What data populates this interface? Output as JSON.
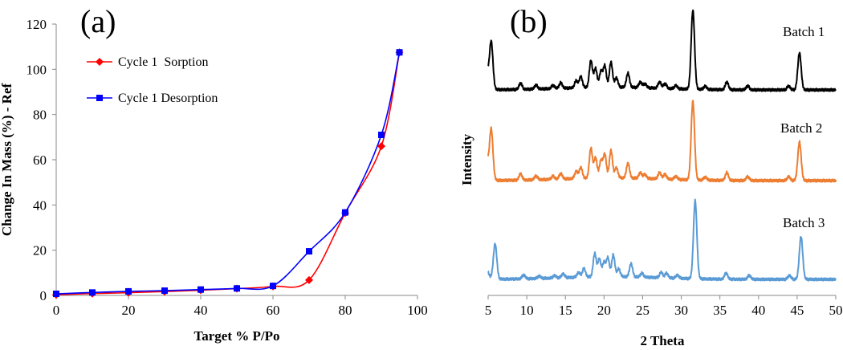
{
  "chart_data": [
    {
      "type": "line",
      "panel_label": "(a)",
      "xlabel": "Target % P/Po",
      "ylabel": "Change In Mass (%) - Ref",
      "xlim": [
        0,
        100
      ],
      "ylim": [
        0,
        120
      ],
      "xticks": [
        "0",
        "20",
        "40",
        "60",
        "80",
        "100"
      ],
      "yticks": [
        "0",
        "20",
        "40",
        "60",
        "80",
        "100",
        "120"
      ],
      "legend_position": "top-left",
      "series": [
        {
          "name": "Cycle 1  Sorption",
          "color": "#ff0000",
          "marker": "diamond",
          "x": [
            0,
            10,
            20,
            30,
            40,
            50,
            60,
            70,
            80,
            90,
            95
          ],
          "y": [
            0.3,
            0.8,
            1.2,
            1.7,
            2.3,
            3.0,
            4.0,
            6.8,
            36.5,
            66.0,
            107.5
          ]
        },
        {
          "name": "Cycle 1 Desorption",
          "color": "#0000ff",
          "marker": "square",
          "x": [
            0,
            10,
            20,
            30,
            40,
            50,
            60,
            70,
            80,
            90,
            95
          ],
          "y": [
            0.7,
            1.3,
            1.8,
            2.1,
            2.6,
            3.1,
            4.2,
            19.5,
            36.7,
            71.0,
            107.5
          ]
        }
      ]
    },
    {
      "type": "line",
      "panel_label": "(b)",
      "xlabel": "2 Theta",
      "ylabel": "Intensity",
      "xlim": [
        5,
        50
      ],
      "xticks": [
        "5",
        "10",
        "15",
        "20",
        "25",
        "30",
        "35",
        "40",
        "45",
        "50"
      ],
      "series": [
        {
          "name": "Batch 1",
          "color": "#000000",
          "peaks": [
            [
              5.4,
              58
            ],
            [
              9.2,
              8
            ],
            [
              11.2,
              5
            ],
            [
              13.4,
              4
            ],
            [
              14.4,
              7
            ],
            [
              16.4,
              9
            ],
            [
              17.0,
              14
            ],
            [
              18.3,
              34
            ],
            [
              18.9,
              24
            ],
            [
              19.6,
              20
            ],
            [
              20.1,
              27
            ],
            [
              20.9,
              32
            ],
            [
              21.6,
              12
            ],
            [
              23.1,
              18
            ],
            [
              24.7,
              7
            ],
            [
              25.3,
              5
            ],
            [
              27.2,
              8
            ],
            [
              27.9,
              6
            ],
            [
              29.3,
              4
            ],
            [
              31.5,
              100
            ],
            [
              33.1,
              4
            ],
            [
              35.9,
              10
            ],
            [
              38.6,
              5
            ],
            [
              43.9,
              5
            ],
            [
              45.3,
              47
            ]
          ]
        },
        {
          "name": "Batch 2",
          "color": "#ed7d31",
          "peaks": [
            [
              5.4,
              62
            ],
            [
              9.2,
              8
            ],
            [
              11.2,
              5
            ],
            [
              13.4,
              4
            ],
            [
              14.4,
              7
            ],
            [
              16.4,
              9
            ],
            [
              17.0,
              14
            ],
            [
              18.3,
              38
            ],
            [
              18.9,
              26
            ],
            [
              19.6,
              22
            ],
            [
              20.1,
              30
            ],
            [
              20.9,
              35
            ],
            [
              21.6,
              13
            ],
            [
              23.1,
              19
            ],
            [
              24.7,
              7
            ],
            [
              25.3,
              5
            ],
            [
              27.2,
              8
            ],
            [
              27.9,
              6
            ],
            [
              29.3,
              4
            ],
            [
              31.5,
              100
            ],
            [
              33.1,
              4
            ],
            [
              35.9,
              10
            ],
            [
              38.6,
              5
            ],
            [
              43.9,
              5
            ],
            [
              45.3,
              49
            ]
          ]
        },
        {
          "name": "Batch 3",
          "color": "#5b9bd5",
          "peaks": [
            [
              5.9,
              45
            ],
            [
              9.6,
              5
            ],
            [
              11.6,
              3
            ],
            [
              13.6,
              3
            ],
            [
              14.7,
              5
            ],
            [
              16.7,
              6
            ],
            [
              17.4,
              11
            ],
            [
              18.8,
              30
            ],
            [
              19.4,
              23
            ],
            [
              20.0,
              18
            ],
            [
              20.5,
              24
            ],
            [
              21.2,
              28
            ],
            [
              21.9,
              10
            ],
            [
              23.5,
              17
            ],
            [
              24.9,
              5
            ],
            [
              27.4,
              7
            ],
            [
              28.1,
              6
            ],
            [
              29.5,
              4
            ],
            [
              31.8,
              100
            ],
            [
              35.8,
              8
            ],
            [
              38.8,
              5
            ],
            [
              44.0,
              5
            ],
            [
              45.5,
              55
            ]
          ]
        }
      ]
    }
  ]
}
